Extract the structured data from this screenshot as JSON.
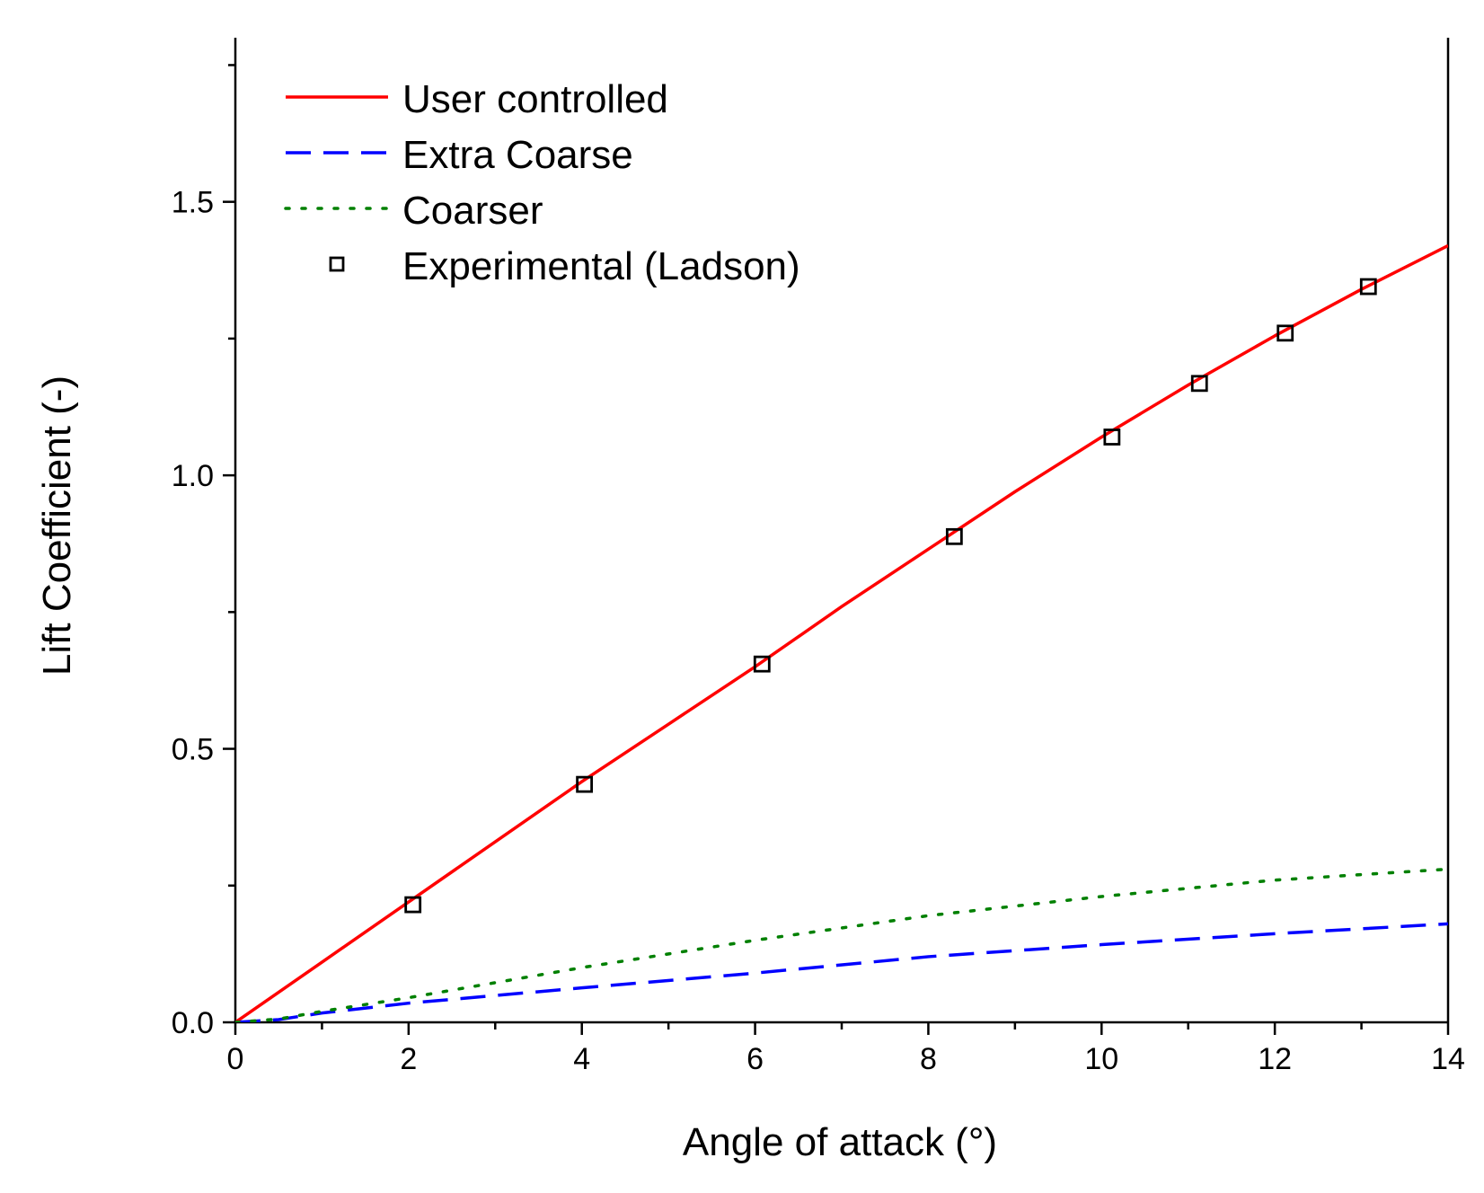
{
  "chart_data": {
    "type": "line",
    "title": "",
    "xlabel": "Angle of attack (°)",
    "ylabel": "Lift Coefficient (-)",
    "xlim": [
      0,
      14
    ],
    "ylim": [
      0,
      1.8
    ],
    "xticks": [
      0,
      2,
      4,
      6,
      8,
      10,
      12,
      14
    ],
    "xtick_labels": [
      "0",
      "2",
      "4",
      "6",
      "8",
      "10",
      "12",
      "14"
    ],
    "yticks": [
      0.0,
      0.5,
      1.0,
      1.5
    ],
    "ytick_labels": [
      "0.0",
      "0.5",
      "1.0",
      "1.5"
    ],
    "grid": false,
    "legend_position": "top-left",
    "series": [
      {
        "name": "User controlled",
        "style": "solid",
        "marker": "none",
        "color": "#ff0000",
        "x": [
          0,
          1,
          2,
          3,
          4,
          5,
          6,
          7,
          8,
          9,
          10,
          11,
          12,
          13,
          14
        ],
        "y": [
          0,
          0.11,
          0.22,
          0.33,
          0.44,
          0.545,
          0.65,
          0.76,
          0.865,
          0.97,
          1.07,
          1.165,
          1.255,
          1.34,
          1.42
        ]
      },
      {
        "name": "Extra Coarse",
        "style": "dashed",
        "marker": "none",
        "color": "#0000ff",
        "x": [
          0,
          0.5,
          1,
          2,
          4,
          6,
          8,
          10,
          12,
          14
        ],
        "y": [
          0,
          0.005,
          0.017,
          0.035,
          0.063,
          0.09,
          0.12,
          0.142,
          0.162,
          0.18
        ]
      },
      {
        "name": "Coarser",
        "style": "dotted",
        "marker": "none",
        "color": "#008000",
        "x": [
          0,
          0.5,
          1,
          2,
          4,
          6,
          8,
          10,
          12,
          14
        ],
        "y": [
          0,
          0.006,
          0.02,
          0.045,
          0.1,
          0.15,
          0.195,
          0.23,
          0.26,
          0.28
        ]
      },
      {
        "name": "Experimental (Ladson)",
        "style": "none",
        "marker": "open-square",
        "color": "#000000",
        "x": [
          2.05,
          4.03,
          6.08,
          8.3,
          10.12,
          11.13,
          12.12,
          13.08
        ],
        "y": [
          0.215,
          0.435,
          0.655,
          0.888,
          1.07,
          1.168,
          1.26,
          1.345
        ]
      }
    ]
  }
}
